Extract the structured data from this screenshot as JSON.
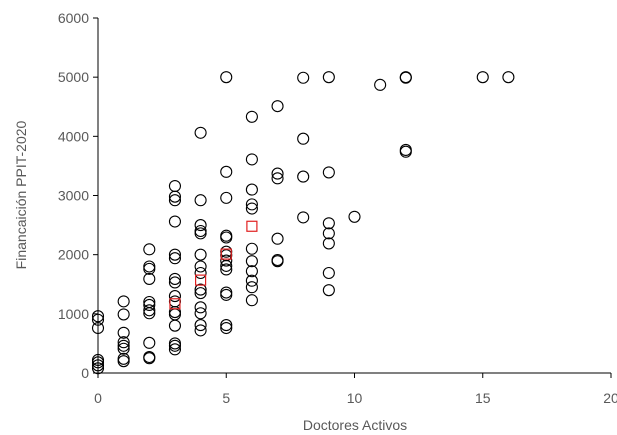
{
  "chart_data": {
    "type": "scatter",
    "title": "",
    "xlabel": "Doctores Activos",
    "ylabel": "Financaición PPIT-2020",
    "xlim": [
      0,
      20
    ],
    "ylim": [
      0,
      6000
    ],
    "x_ticks": [
      0,
      5,
      10,
      15,
      20
    ],
    "y_ticks": [
      0,
      1000,
      2000,
      3000,
      4000,
      5000,
      6000
    ],
    "x_tick_labels": [
      "0",
      "5",
      "10",
      "15",
      "20"
    ],
    "y_tick_labels": [
      "0",
      "1000",
      "2000",
      "3000",
      "4000",
      "5000",
      "6000"
    ],
    "grid": false,
    "legend": "none",
    "colors": {
      "observations": "#000000",
      "means": "#e02020",
      "axis": "#000000",
      "text": "#595959"
    },
    "series": [
      {
        "marker": "circle",
        "color": "#000000",
        "points": [
          [
            0,
            960
          ],
          [
            0,
            900
          ],
          [
            0,
            760
          ],
          [
            0,
            220
          ],
          [
            0,
            180
          ],
          [
            0,
            130
          ],
          [
            0,
            80
          ],
          [
            1,
            1210
          ],
          [
            1,
            990
          ],
          [
            1,
            680
          ],
          [
            1,
            520
          ],
          [
            1,
            460
          ],
          [
            1,
            410
          ],
          [
            1,
            240
          ],
          [
            1,
            200
          ],
          [
            2,
            2090
          ],
          [
            2,
            1800
          ],
          [
            2,
            1760
          ],
          [
            2,
            1590
          ],
          [
            2,
            1200
          ],
          [
            2,
            1150
          ],
          [
            2,
            1060
          ],
          [
            2,
            1010
          ],
          [
            2,
            510
          ],
          [
            2,
            270
          ],
          [
            2,
            250
          ],
          [
            3,
            3160
          ],
          [
            3,
            2980
          ],
          [
            3,
            2920
          ],
          [
            3,
            2560
          ],
          [
            3,
            2000
          ],
          [
            3,
            1940
          ],
          [
            3,
            1590
          ],
          [
            3,
            1530
          ],
          [
            3,
            1300
          ],
          [
            3,
            1210
          ],
          [
            3,
            1030
          ],
          [
            3,
            990
          ],
          [
            3,
            800
          ],
          [
            3,
            500
          ],
          [
            3,
            460
          ],
          [
            3,
            400
          ],
          [
            4,
            4060
          ],
          [
            4,
            2920
          ],
          [
            4,
            2500
          ],
          [
            4,
            2400
          ],
          [
            4,
            2360
          ],
          [
            4,
            2000
          ],
          [
            4,
            1800
          ],
          [
            4,
            1690
          ],
          [
            4,
            1410
          ],
          [
            4,
            1350
          ],
          [
            4,
            1110
          ],
          [
            4,
            1010
          ],
          [
            4,
            810
          ],
          [
            4,
            720
          ],
          [
            5,
            5000
          ],
          [
            5,
            3400
          ],
          [
            5,
            2960
          ],
          [
            5,
            2320
          ],
          [
            5,
            2290
          ],
          [
            5,
            2050
          ],
          [
            5,
            1990
          ],
          [
            5,
            1900
          ],
          [
            5,
            1810
          ],
          [
            5,
            1750
          ],
          [
            5,
            1360
          ],
          [
            5,
            1320
          ],
          [
            5,
            810
          ],
          [
            5,
            760
          ],
          [
            6,
            4330
          ],
          [
            6,
            3610
          ],
          [
            6,
            3100
          ],
          [
            6,
            2850
          ],
          [
            6,
            2780
          ],
          [
            6,
            2100
          ],
          [
            6,
            1890
          ],
          [
            6,
            1720
          ],
          [
            6,
            1560
          ],
          [
            6,
            1450
          ],
          [
            6,
            1230
          ],
          [
            7,
            4510
          ],
          [
            7,
            3370
          ],
          [
            7,
            3290
          ],
          [
            7,
            2270
          ],
          [
            7,
            1910
          ],
          [
            7,
            1890
          ],
          [
            8,
            4990
          ],
          [
            8,
            3960
          ],
          [
            8,
            3320
          ],
          [
            8,
            2630
          ],
          [
            9,
            5000
          ],
          [
            9,
            3390
          ],
          [
            9,
            2530
          ],
          [
            9,
            2360
          ],
          [
            9,
            2190
          ],
          [
            9,
            1690
          ],
          [
            9,
            1400
          ],
          [
            10,
            2640
          ],
          [
            11,
            4870
          ],
          [
            12,
            5000
          ],
          [
            12,
            4990
          ],
          [
            12,
            3770
          ],
          [
            12,
            3740
          ],
          [
            15,
            5000
          ],
          [
            16,
            5000
          ]
        ]
      },
      {
        "marker": "square",
        "color": "#e02020",
        "points": [
          [
            3,
            1170
          ],
          [
            4,
            1570
          ],
          [
            5,
            2010
          ],
          [
            6,
            2480
          ]
        ]
      }
    ]
  }
}
